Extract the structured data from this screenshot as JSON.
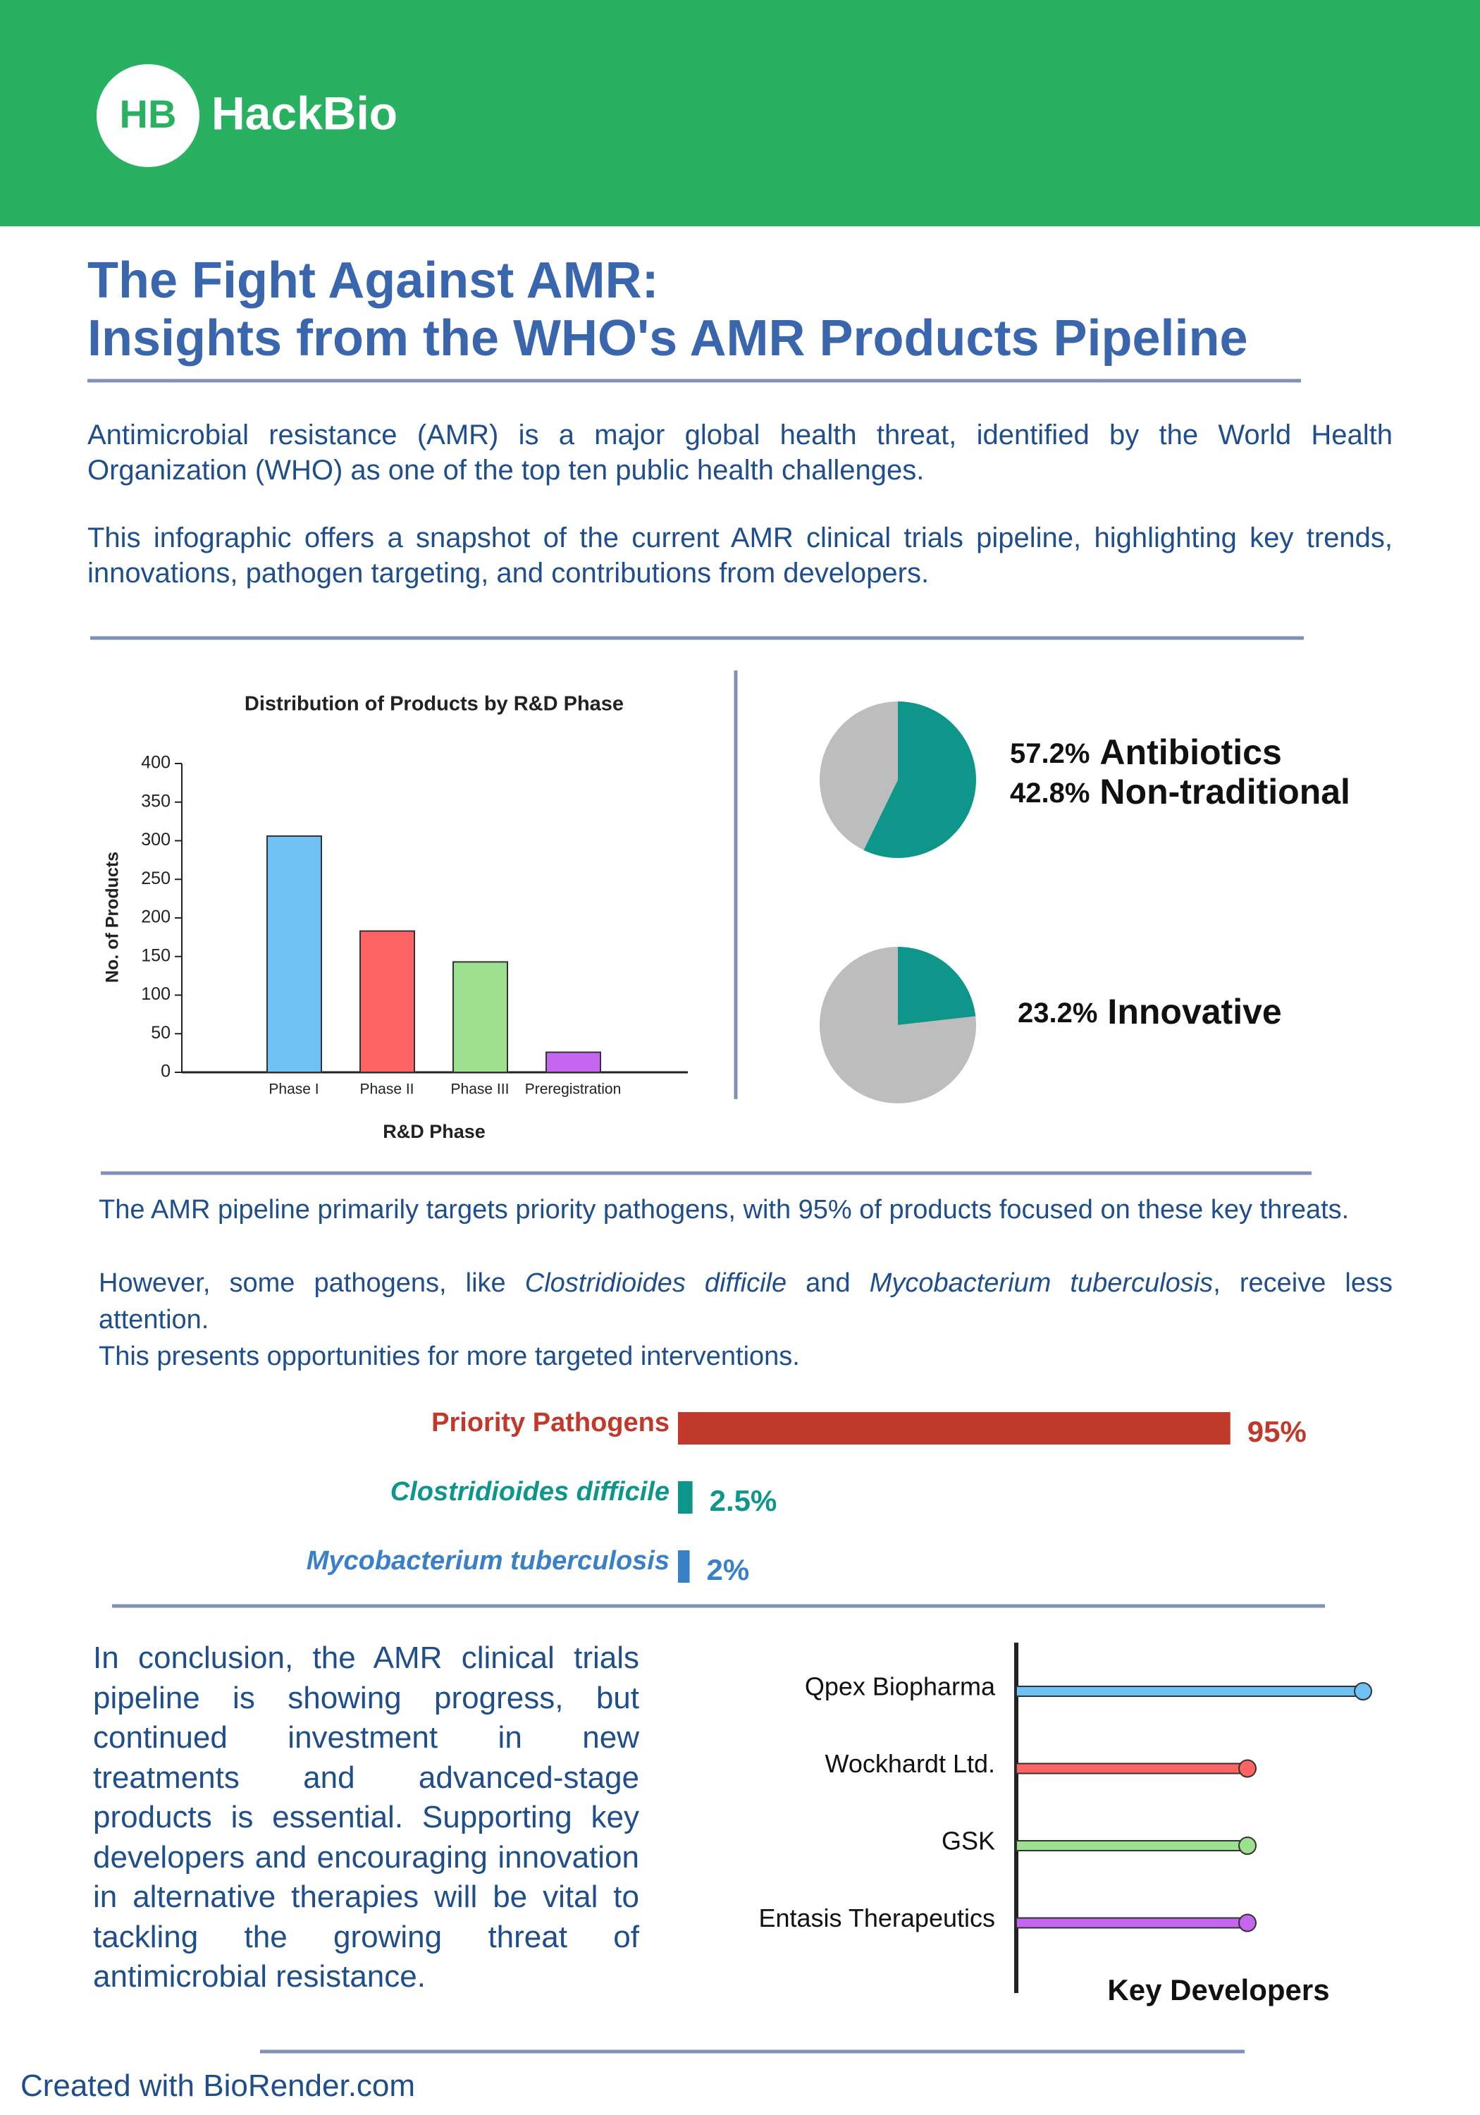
{
  "header": {
    "logo_initials": "HB",
    "brand": "HackBio"
  },
  "title": [
    "The Fight Against AMR:",
    "Insights from the WHO's AMR Products Pipeline"
  ],
  "intro": [
    "Antimicrobial resistance (AMR) is a major global health threat, identified by the World Health Organization (WHO) as one of the top ten public health challenges.",
    "This infographic offers a snapshot of the current AMR clinical trials pipeline, highlighting key trends, innovations, pathogen targeting, and contributions from developers."
  ],
  "pathogen_text": {
    "line1": "The AMR pipeline primarily targets priority pathogens, with 95% of products focused on these key threats.",
    "line2": [
      "However, some pathogens, like ",
      "Clostridioides difficile",
      " and ",
      "Mycobacterium tuberculosis",
      ", receive less attention."
    ],
    "line3": "This presents opportunities for more targeted interventions."
  },
  "conclusion": "In conclusion, the AMR clinical trials pipeline is showing progress, but continued investment in new treatments and advanced-stage products is essential. Supporting key developers and encouraging innovation in alternative therapies will be vital to tackling the growing threat of antimicrobial resistance.",
  "footer": "Created with BioRender.com",
  "chart_data": [
    {
      "type": "bar",
      "title": "Distribution of Products by R&D Phase",
      "x_label": "R&D Phase",
      "y_label": "No. of Products",
      "categories": [
        "Phase I",
        "Phase II",
        "Phase III",
        "Preregistration"
      ],
      "values": [
        306,
        183,
        143,
        26
      ],
      "colors": [
        "#6ec3f4",
        "#ff6464",
        "#9de08f",
        "#c566f0"
      ],
      "ylim": [
        0,
        400
      ],
      "yticks": [
        0,
        50,
        100,
        150,
        200,
        250,
        300,
        350,
        400
      ],
      "grid": false
    },
    {
      "type": "pie",
      "categories": [
        "Antibiotics",
        "Non-traditional"
      ],
      "values": [
        57.2,
        42.8
      ],
      "value_labels": [
        "57.2%",
        "42.8%"
      ],
      "colors": [
        "#0e968a",
        "#bdbdbd"
      ]
    },
    {
      "type": "pie",
      "categories": [
        "Innovative",
        null
      ],
      "values": [
        23.2,
        76.8
      ],
      "value_labels": [
        "23.2%",
        null
      ],
      "colors": [
        "#0e968a",
        "#bdbdbd"
      ]
    },
    {
      "type": "barh",
      "categories": [
        "Priority Pathogens",
        "Clostridioides difficile",
        "Mycobacterium tuberculosis"
      ],
      "values": [
        95,
        2.5,
        2
      ],
      "value_labels": [
        "95%",
        "2.5%",
        "2%"
      ],
      "colors": [
        "#c0392b",
        "#0e968a",
        "#3a80c8"
      ]
    },
    {
      "type": "lollipop",
      "title": "Key Developers",
      "categories": [
        "Qpex Biopharma",
        "Wockhardt Ltd.",
        "GSK",
        "Entasis Therapeutics"
      ],
      "values": [
        6,
        4,
        4,
        4
      ],
      "colors": [
        "#6ec3f4",
        "#ff6464",
        "#9de08f",
        "#c566f0"
      ]
    }
  ]
}
